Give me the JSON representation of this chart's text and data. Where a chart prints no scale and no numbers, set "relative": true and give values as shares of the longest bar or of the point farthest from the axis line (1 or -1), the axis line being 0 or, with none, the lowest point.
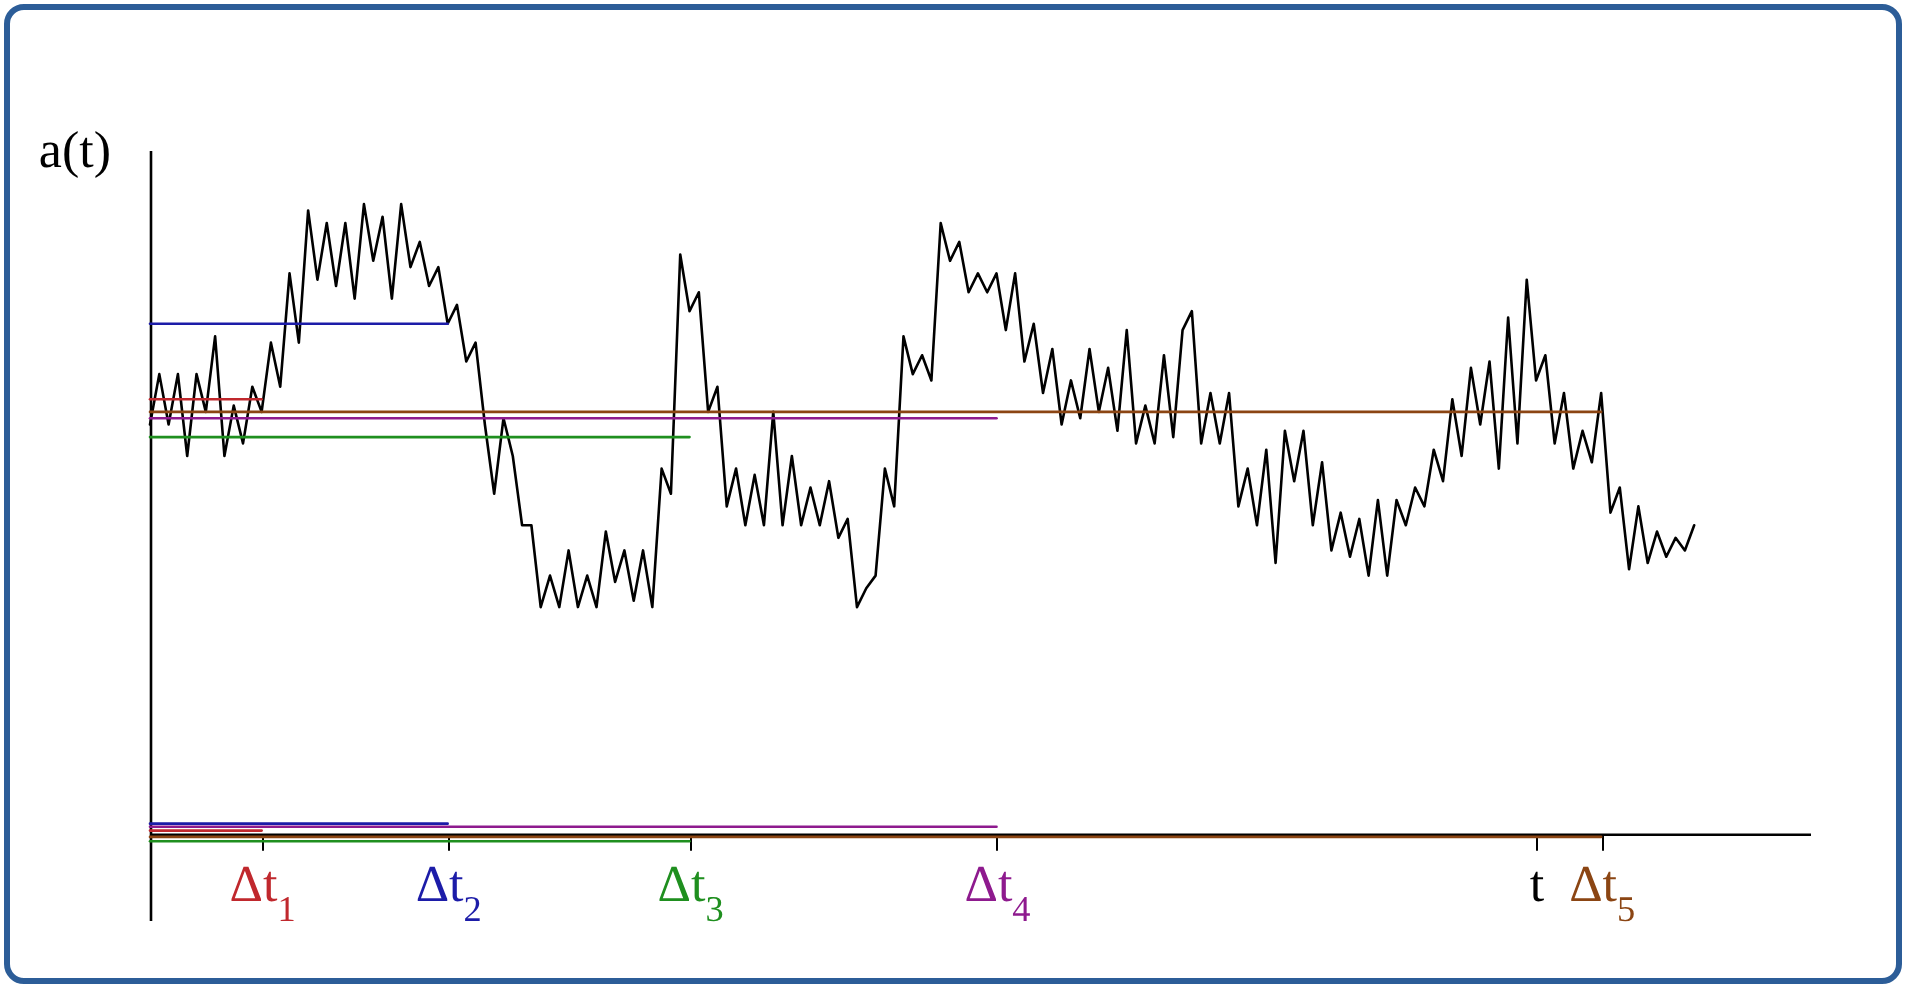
{
  "chart_data": {
    "type": "line",
    "relative": true,
    "ylabel": "a(t)",
    "marker": "none",
    "line_style": "solid",
    "categories": [
      null,
      null,
      null,
      null,
      null,
      null,
      null,
      null,
      null,
      null,
      null,
      null,
      "Δt$_{1}$",
      null,
      null,
      null,
      null,
      null,
      null,
      null,
      null,
      null,
      null,
      null,
      null,
      null,
      null,
      null,
      null,
      null,
      null,
      null,
      "Δt$_{2}$",
      null,
      null,
      null,
      null,
      null,
      null,
      null,
      null,
      null,
      null,
      null,
      null,
      null,
      null,
      null,
      null,
      null,
      null,
      null,
      null,
      null,
      null,
      null,
      null,
      null,
      "Δt$_{3}$",
      null,
      null,
      null,
      null,
      null,
      null,
      null,
      null,
      null,
      null,
      null,
      null,
      null,
      null,
      null,
      null,
      null,
      null,
      null,
      null,
      null,
      null,
      null,
      null,
      null,
      null,
      null,
      null,
      null,
      null,
      null,
      null,
      "Δt$_{4}$",
      null,
      null,
      null,
      null,
      null,
      null,
      null,
      null,
      null,
      null,
      null,
      null,
      null,
      null,
      null,
      null,
      null,
      null,
      null,
      null,
      null,
      null,
      null,
      null,
      null,
      null,
      null,
      null,
      null,
      null,
      null,
      null,
      null,
      null,
      null,
      null,
      null,
      null,
      null,
      null,
      null,
      null,
      null,
      null,
      null,
      null,
      null,
      null,
      null,
      null,
      null,
      null,
      null,
      null,
      null,
      null,
      null,
      "t",
      null,
      null,
      null,
      null,
      null,
      null,
      "Δt$_{5}$",
      null,
      null,
      null,
      null,
      null,
      null,
      null,
      null,
      null,
      null
    ],
    "series": [
      {
        "color": "#000000",
        "values": [
          0.65,
          0.73,
          0.65,
          0.73,
          0.6,
          0.73,
          0.67,
          0.79,
          0.6,
          0.68,
          0.62,
          0.71,
          0.67,
          0.78,
          0.71,
          0.89,
          0.78,
          0.99,
          0.88,
          0.97,
          0.87,
          0.97,
          0.85,
          1.0,
          0.91,
          0.98,
          0.85,
          1.0,
          0.9,
          0.94,
          0.87,
          0.9,
          0.81,
          0.84,
          0.75,
          0.78,
          0.65,
          0.54,
          0.66,
          0.6,
          0.49,
          0.49,
          0.36,
          0.41,
          0.36,
          0.45,
          0.36,
          0.41,
          0.36,
          0.48,
          0.4,
          0.45,
          0.37,
          0.45,
          0.36,
          0.58,
          0.54,
          0.92,
          0.83,
          0.86,
          0.67,
          0.71,
          0.52,
          0.58,
          0.49,
          0.57,
          0.49,
          0.67,
          0.49,
          0.6,
          0.49,
          0.55,
          0.49,
          0.56,
          0.47,
          0.5,
          0.36,
          0.39,
          0.41,
          0.58,
          0.52,
          0.79,
          0.73,
          0.76,
          0.72,
          0.97,
          0.91,
          0.94,
          0.86,
          0.89,
          0.86,
          0.89,
          0.8,
          0.89,
          0.75,
          0.81,
          0.7,
          0.77,
          0.65,
          0.72,
          0.66,
          0.77,
          0.67,
          0.74,
          0.64,
          0.8,
          0.62,
          0.68,
          0.62,
          0.76,
          0.63,
          0.8,
          0.83,
          0.62,
          0.7,
          0.62,
          0.7,
          0.52,
          0.58,
          0.49,
          0.61,
          0.43,
          0.64,
          0.56,
          0.64,
          0.49,
          0.59,
          0.45,
          0.51,
          0.44,
          0.5,
          0.41,
          0.53,
          0.41,
          0.53,
          0.49,
          0.55,
          0.52,
          0.61,
          0.56,
          0.69,
          0.6,
          0.74,
          0.65,
          0.75,
          0.58,
          0.82,
          0.62,
          0.88,
          0.72,
          0.76,
          0.62,
          0.7,
          0.58,
          0.64,
          0.59,
          0.7,
          0.51,
          0.55,
          0.42,
          0.52,
          0.43,
          0.48,
          0.44,
          0.47,
          0.45,
          0.49
        ]
      },
      {
        "color": "#c0282d",
        "values": [
          0.69,
          0.69,
          0.69,
          0.69,
          0.69,
          0.69,
          0.69,
          0.69,
          0.69,
          0.69,
          0.69,
          0.69,
          0.69,
          null,
          null,
          null,
          null,
          null,
          null,
          null,
          null,
          null,
          null,
          null,
          null,
          null,
          null,
          null,
          null,
          null,
          null,
          null,
          null,
          null,
          null,
          null,
          null,
          null,
          null,
          null,
          null,
          null,
          null,
          null,
          null,
          null,
          null,
          null,
          null,
          null,
          null,
          null,
          null,
          null,
          null,
          null,
          null,
          null,
          null,
          null,
          null,
          null,
          null,
          null,
          null,
          null,
          null,
          null,
          null,
          null,
          null,
          null,
          null,
          null,
          null,
          null,
          null,
          null,
          null,
          null,
          null,
          null,
          null,
          null,
          null,
          null,
          null,
          null,
          null,
          null,
          null,
          null,
          null,
          null,
          null,
          null,
          null,
          null,
          null,
          null,
          null,
          null,
          null,
          null,
          null,
          null,
          null,
          null,
          null,
          null,
          null,
          null,
          null,
          null,
          null,
          null,
          null,
          null,
          null,
          null,
          null,
          null,
          null,
          null,
          null,
          null,
          null,
          null,
          null,
          null,
          null,
          null,
          null,
          null,
          null,
          null,
          null,
          null,
          null,
          null,
          null,
          null,
          null,
          null,
          null,
          null,
          null,
          null,
          null,
          null,
          null,
          null,
          null,
          null,
          null,
          null,
          null,
          null,
          null,
          null,
          null,
          null,
          null,
          null,
          null,
          null,
          null
        ]
      },
      {
        "color": "#1c1ca8",
        "values": [
          0.81,
          0.81,
          0.81,
          0.81,
          0.81,
          0.81,
          0.81,
          0.81,
          0.81,
          0.81,
          0.81,
          0.81,
          0.81,
          0.81,
          0.81,
          0.81,
          0.81,
          0.81,
          0.81,
          0.81,
          0.81,
          0.81,
          0.81,
          0.81,
          0.81,
          0.81,
          0.81,
          0.81,
          0.81,
          0.81,
          0.81,
          0.81,
          0.81,
          null,
          null,
          null,
          null,
          null,
          null,
          null,
          null,
          null,
          null,
          null,
          null,
          null,
          null,
          null,
          null,
          null,
          null,
          null,
          null,
          null,
          null,
          null,
          null,
          null,
          null,
          null,
          null,
          null,
          null,
          null,
          null,
          null,
          null,
          null,
          null,
          null,
          null,
          null,
          null,
          null,
          null,
          null,
          null,
          null,
          null,
          null,
          null,
          null,
          null,
          null,
          null,
          null,
          null,
          null,
          null,
          null,
          null,
          null,
          null,
          null,
          null,
          null,
          null,
          null,
          null,
          null,
          null,
          null,
          null,
          null,
          null,
          null,
          null,
          null,
          null,
          null,
          null,
          null,
          null,
          null,
          null,
          null,
          null,
          null,
          null,
          null,
          null,
          null,
          null,
          null,
          null,
          null,
          null,
          null,
          null,
          null,
          null,
          null,
          null,
          null,
          null,
          null,
          null,
          null,
          null,
          null,
          null,
          null,
          null,
          null,
          null,
          null,
          null,
          null,
          null,
          null,
          null,
          null,
          null,
          null,
          null,
          null,
          null,
          null,
          null,
          null,
          null,
          null,
          null,
          null,
          null,
          null,
          null
        ]
      },
      {
        "color": "#1f8f1f",
        "values": [
          0.63,
          0.63,
          0.63,
          0.63,
          0.63,
          0.63,
          0.63,
          0.63,
          0.63,
          0.63,
          0.63,
          0.63,
          0.63,
          0.63,
          0.63,
          0.63,
          0.63,
          0.63,
          0.63,
          0.63,
          0.63,
          0.63,
          0.63,
          0.63,
          0.63,
          0.63,
          0.63,
          0.63,
          0.63,
          0.63,
          0.63,
          0.63,
          0.63,
          0.63,
          0.63,
          0.63,
          0.63,
          0.63,
          0.63,
          0.63,
          0.63,
          0.63,
          0.63,
          0.63,
          0.63,
          0.63,
          0.63,
          0.63,
          0.63,
          0.63,
          0.63,
          0.63,
          0.63,
          0.63,
          0.63,
          0.63,
          0.63,
          0.63,
          0.63,
          null,
          null,
          null,
          null,
          null,
          null,
          null,
          null,
          null,
          null,
          null,
          null,
          null,
          null,
          null,
          null,
          null,
          null,
          null,
          null,
          null,
          null,
          null,
          null,
          null,
          null,
          null,
          null,
          null,
          null,
          null,
          null,
          null,
          null,
          null,
          null,
          null,
          null,
          null,
          null,
          null,
          null,
          null,
          null,
          null,
          null,
          null,
          null,
          null,
          null,
          null,
          null,
          null,
          null,
          null,
          null,
          null,
          null,
          null,
          null,
          null,
          null,
          null,
          null,
          null,
          null,
          null,
          null,
          null,
          null,
          null,
          null,
          null,
          null,
          null,
          null,
          null,
          null,
          null,
          null,
          null,
          null,
          null,
          null,
          null,
          null,
          null,
          null,
          null,
          null,
          null,
          null,
          null,
          null,
          null,
          null,
          null,
          null,
          null,
          null,
          null,
          null,
          null,
          null,
          null,
          null,
          null,
          null
        ]
      },
      {
        "color": "#8e1a8e",
        "values": [
          0.66,
          0.66,
          0.66,
          0.66,
          0.66,
          0.66,
          0.66,
          0.66,
          0.66,
          0.66,
          0.66,
          0.66,
          0.66,
          0.66,
          0.66,
          0.66,
          0.66,
          0.66,
          0.66,
          0.66,
          0.66,
          0.66,
          0.66,
          0.66,
          0.66,
          0.66,
          0.66,
          0.66,
          0.66,
          0.66,
          0.66,
          0.66,
          0.66,
          0.66,
          0.66,
          0.66,
          0.66,
          0.66,
          0.66,
          0.66,
          0.66,
          0.66,
          0.66,
          0.66,
          0.66,
          0.66,
          0.66,
          0.66,
          0.66,
          0.66,
          0.66,
          0.66,
          0.66,
          0.66,
          0.66,
          0.66,
          0.66,
          0.66,
          0.66,
          0.66,
          0.66,
          0.66,
          0.66,
          0.66,
          0.66,
          0.66,
          0.66,
          0.66,
          0.66,
          0.66,
          0.66,
          0.66,
          0.66,
          0.66,
          0.66,
          0.66,
          0.66,
          0.66,
          0.66,
          0.66,
          0.66,
          0.66,
          0.66,
          0.66,
          0.66,
          0.66,
          0.66,
          0.66,
          0.66,
          0.66,
          0.66,
          0.66,
          null,
          null,
          null,
          null,
          null,
          null,
          null,
          null,
          null,
          null,
          null,
          null,
          null,
          null,
          null,
          null,
          null,
          null,
          null,
          null,
          null,
          null,
          null,
          null,
          null,
          null,
          null,
          null,
          null,
          null,
          null,
          null,
          null,
          null,
          null,
          null,
          null,
          null,
          null,
          null,
          null,
          null,
          null,
          null,
          null,
          null,
          null,
          null,
          null,
          null,
          null,
          null,
          null,
          null,
          null,
          null,
          null,
          null,
          null,
          null,
          null,
          null,
          null,
          null,
          null,
          null,
          null,
          null,
          null,
          null,
          null,
          null,
          null,
          null,
          null
        ]
      },
      {
        "color": "#8b4513",
        "values": [
          0.67,
          0.67,
          0.67,
          0.67,
          0.67,
          0.67,
          0.67,
          0.67,
          0.67,
          0.67,
          0.67,
          0.67,
          0.67,
          0.67,
          0.67,
          0.67,
          0.67,
          0.67,
          0.67,
          0.67,
          0.67,
          0.67,
          0.67,
          0.67,
          0.67,
          0.67,
          0.67,
          0.67,
          0.67,
          0.67,
          0.67,
          0.67,
          0.67,
          0.67,
          0.67,
          0.67,
          0.67,
          0.67,
          0.67,
          0.67,
          0.67,
          0.67,
          0.67,
          0.67,
          0.67,
          0.67,
          0.67,
          0.67,
          0.67,
          0.67,
          0.67,
          0.67,
          0.67,
          0.67,
          0.67,
          0.67,
          0.67,
          0.67,
          0.67,
          0.67,
          0.67,
          0.67,
          0.67,
          0.67,
          0.67,
          0.67,
          0.67,
          0.67,
          0.67,
          0.67,
          0.67,
          0.67,
          0.67,
          0.67,
          0.67,
          0.67,
          0.67,
          0.67,
          0.67,
          0.67,
          0.67,
          0.67,
          0.67,
          0.67,
          0.67,
          0.67,
          0.67,
          0.67,
          0.67,
          0.67,
          0.67,
          0.67,
          0.67,
          0.67,
          0.67,
          0.67,
          0.67,
          0.67,
          0.67,
          0.67,
          0.67,
          0.67,
          0.67,
          0.67,
          0.67,
          0.67,
          0.67,
          0.67,
          0.67,
          0.67,
          0.67,
          0.67,
          0.67,
          0.67,
          0.67,
          0.67,
          0.67,
          0.67,
          0.67,
          0.67,
          0.67,
          0.67,
          0.67,
          0.67,
          0.67,
          0.67,
          0.67,
          0.67,
          0.67,
          0.67,
          0.67,
          0.67,
          0.67,
          0.67,
          0.67,
          0.67,
          0.67,
          0.67,
          0.67,
          0.67,
          0.67,
          0.67,
          0.67,
          0.67,
          0.67,
          0.67,
          0.67,
          0.67,
          0.67,
          0.67,
          0.67,
          0.67,
          0.67,
          0.67,
          0.67,
          0.67,
          0.67,
          null,
          null,
          null,
          null,
          null,
          null,
          null,
          null,
          null,
          null
        ]
      },
      {
        "color": "#1c1ca8",
        "values": [
          0.016,
          0.016,
          0.016,
          0.016,
          0.016,
          0.016,
          0.016,
          0.016,
          0.016,
          0.016,
          0.016,
          0.016,
          0.016,
          0.016,
          0.016,
          0.016,
          0.016,
          0.016,
          0.016,
          0.016,
          0.016,
          0.016,
          0.016,
          0.016,
          0.016,
          0.016,
          0.016,
          0.016,
          0.016,
          0.016,
          0.016,
          0.016,
          0.016,
          null,
          null,
          null,
          null,
          null,
          null,
          null,
          null,
          null,
          null,
          null,
          null,
          null,
          null,
          null,
          null,
          null,
          null,
          null,
          null,
          null,
          null,
          null,
          null,
          null,
          null,
          null,
          null,
          null,
          null,
          null,
          null,
          null,
          null,
          null,
          null,
          null,
          null,
          null,
          null,
          null,
          null,
          null,
          null,
          null,
          null,
          null,
          null,
          null,
          null,
          null,
          null,
          null,
          null,
          null,
          null,
          null,
          null,
          null,
          null,
          null,
          null,
          null,
          null,
          null,
          null,
          null,
          null,
          null,
          null,
          null,
          null,
          null,
          null,
          null,
          null,
          null,
          null,
          null,
          null,
          null,
          null,
          null,
          null,
          null,
          null,
          null,
          null,
          null,
          null,
          null,
          null,
          null,
          null,
          null,
          null,
          null,
          null,
          null,
          null,
          null,
          null,
          null,
          null,
          null,
          null,
          null,
          null,
          null,
          null,
          null,
          null,
          null,
          null,
          null,
          null,
          null,
          null,
          null,
          null,
          null,
          null,
          null,
          null,
          null,
          null,
          null,
          null,
          null,
          null,
          null,
          null,
          null,
          null
        ]
      },
      {
        "color": "#8e1a8e",
        "values": [
          0.011,
          0.011,
          0.011,
          0.011,
          0.011,
          0.011,
          0.011,
          0.011,
          0.011,
          0.011,
          0.011,
          0.011,
          0.011,
          0.011,
          0.011,
          0.011,
          0.011,
          0.011,
          0.011,
          0.011,
          0.011,
          0.011,
          0.011,
          0.011,
          0.011,
          0.011,
          0.011,
          0.011,
          0.011,
          0.011,
          0.011,
          0.011,
          0.011,
          0.011,
          0.011,
          0.011,
          0.011,
          0.011,
          0.011,
          0.011,
          0.011,
          0.011,
          0.011,
          0.011,
          0.011,
          0.011,
          0.011,
          0.011,
          0.011,
          0.011,
          0.011,
          0.011,
          0.011,
          0.011,
          0.011,
          0.011,
          0.011,
          0.011,
          0.011,
          0.011,
          0.011,
          0.011,
          0.011,
          0.011,
          0.011,
          0.011,
          0.011,
          0.011,
          0.011,
          0.011,
          0.011,
          0.011,
          0.011,
          0.011,
          0.011,
          0.011,
          0.011,
          0.011,
          0.011,
          0.011,
          0.011,
          0.011,
          0.011,
          0.011,
          0.011,
          0.011,
          0.011,
          0.011,
          0.011,
          0.011,
          0.011,
          0.011,
          null,
          null,
          null,
          null,
          null,
          null,
          null,
          null,
          null,
          null,
          null,
          null,
          null,
          null,
          null,
          null,
          null,
          null,
          null,
          null,
          null,
          null,
          null,
          null,
          null,
          null,
          null,
          null,
          null,
          null,
          null,
          null,
          null,
          null,
          null,
          null,
          null,
          null,
          null,
          null,
          null,
          null,
          null,
          null,
          null,
          null,
          null,
          null,
          null,
          null,
          null,
          null,
          null,
          null,
          null,
          null,
          null,
          null,
          null,
          null,
          null,
          null,
          null,
          null,
          null,
          null,
          null,
          null,
          null,
          null,
          null,
          null,
          null,
          null,
          null
        ]
      },
      {
        "color": "#c0282d",
        "values": [
          0.005,
          0.005,
          0.005,
          0.005,
          0.005,
          0.005,
          0.005,
          0.005,
          0.005,
          0.005,
          0.005,
          0.005,
          0.005,
          null,
          null,
          null,
          null,
          null,
          null,
          null,
          null,
          null,
          null,
          null,
          null,
          null,
          null,
          null,
          null,
          null,
          null,
          null,
          null,
          null,
          null,
          null,
          null,
          null,
          null,
          null,
          null,
          null,
          null,
          null,
          null,
          null,
          null,
          null,
          null,
          null,
          null,
          null,
          null,
          null,
          null,
          null,
          null,
          null,
          null,
          null,
          null,
          null,
          null,
          null,
          null,
          null,
          null,
          null,
          null,
          null,
          null,
          null,
          null,
          null,
          null,
          null,
          null,
          null,
          null,
          null,
          null,
          null,
          null,
          null,
          null,
          null,
          null,
          null,
          null,
          null,
          null,
          null,
          null,
          null,
          null,
          null,
          null,
          null,
          null,
          null,
          null,
          null,
          null,
          null,
          null,
          null,
          null,
          null,
          null,
          null,
          null,
          null,
          null,
          null,
          null,
          null,
          null,
          null,
          null,
          null,
          null,
          null,
          null,
          null,
          null,
          null,
          null,
          null,
          null,
          null,
          null,
          null,
          null,
          null,
          null,
          null,
          null,
          null,
          null,
          null,
          null,
          null,
          null,
          null,
          null,
          null,
          null,
          null,
          null,
          null,
          null,
          null,
          null,
          null,
          null,
          null,
          null,
          null,
          null,
          null,
          null,
          null,
          null,
          null,
          null,
          null,
          null
        ]
      },
      {
        "color": "#8b4513",
        "values": [
          -0.005,
          -0.005,
          -0.005,
          -0.005,
          -0.005,
          -0.005,
          -0.005,
          -0.005,
          -0.005,
          -0.005,
          -0.005,
          -0.005,
          -0.005,
          -0.005,
          -0.005,
          -0.005,
          -0.005,
          -0.005,
          -0.005,
          -0.005,
          -0.005,
          -0.005,
          -0.005,
          -0.005,
          -0.005,
          -0.005,
          -0.005,
          -0.005,
          -0.005,
          -0.005,
          -0.005,
          -0.005,
          -0.005,
          -0.005,
          -0.005,
          -0.005,
          -0.005,
          -0.005,
          -0.005,
          -0.005,
          -0.005,
          -0.005,
          -0.005,
          -0.005,
          -0.005,
          -0.005,
          -0.005,
          -0.005,
          -0.005,
          -0.005,
          -0.005,
          -0.005,
          -0.005,
          -0.005,
          -0.005,
          -0.005,
          -0.005,
          -0.005,
          -0.005,
          -0.005,
          -0.005,
          -0.005,
          -0.005,
          -0.005,
          -0.005,
          -0.005,
          -0.005,
          -0.005,
          -0.005,
          -0.005,
          -0.005,
          -0.005,
          -0.005,
          -0.005,
          -0.005,
          -0.005,
          -0.005,
          -0.005,
          -0.005,
          -0.005,
          -0.005,
          -0.005,
          -0.005,
          -0.005,
          -0.005,
          -0.005,
          -0.005,
          -0.005,
          -0.005,
          -0.005,
          -0.005,
          -0.005,
          -0.005,
          -0.005,
          -0.005,
          -0.005,
          -0.005,
          -0.005,
          -0.005,
          -0.005,
          -0.005,
          -0.005,
          -0.005,
          -0.005,
          -0.005,
          -0.005,
          -0.005,
          -0.005,
          -0.005,
          -0.005,
          -0.005,
          -0.005,
          -0.005,
          -0.005,
          -0.005,
          -0.005,
          -0.005,
          -0.005,
          -0.005,
          -0.005,
          -0.005,
          -0.005,
          -0.005,
          -0.005,
          -0.005,
          -0.005,
          -0.005,
          -0.005,
          -0.005,
          -0.005,
          -0.005,
          -0.005,
          -0.005,
          -0.005,
          -0.005,
          -0.005,
          -0.005,
          -0.005,
          -0.005,
          -0.005,
          -0.005,
          -0.005,
          -0.005,
          -0.005,
          -0.005,
          -0.005,
          -0.005,
          -0.005,
          -0.005,
          -0.005,
          -0.005,
          -0.005,
          -0.005,
          -0.005,
          -0.005,
          -0.005,
          -0.005,
          null,
          null,
          null,
          null,
          null,
          null,
          null,
          null,
          null,
          null
        ]
      },
      {
        "color": "#1f8f1f",
        "values": [
          -0.012,
          -0.012,
          -0.012,
          -0.012,
          -0.012,
          -0.012,
          -0.012,
          -0.012,
          -0.012,
          -0.012,
          -0.012,
          -0.012,
          -0.012,
          -0.012,
          -0.012,
          -0.012,
          -0.012,
          -0.012,
          -0.012,
          -0.012,
          -0.012,
          -0.012,
          -0.012,
          -0.012,
          -0.012,
          -0.012,
          -0.012,
          -0.012,
          -0.012,
          -0.012,
          -0.012,
          -0.012,
          -0.012,
          -0.012,
          -0.012,
          -0.012,
          -0.012,
          -0.012,
          -0.012,
          -0.012,
          -0.012,
          -0.012,
          -0.012,
          -0.012,
          -0.012,
          -0.012,
          -0.012,
          -0.012,
          -0.012,
          -0.012,
          -0.012,
          -0.012,
          -0.012,
          -0.012,
          -0.012,
          -0.012,
          -0.012,
          -0.012,
          -0.012,
          null,
          null,
          null,
          null,
          null,
          null,
          null,
          null,
          null,
          null,
          null,
          null,
          null,
          null,
          null,
          null,
          null,
          null,
          null,
          null,
          null,
          null,
          null,
          null,
          null,
          null,
          null,
          null,
          null,
          null,
          null,
          null,
          null,
          null,
          null,
          null,
          null,
          null,
          null,
          null,
          null,
          null,
          null,
          null,
          null,
          null,
          null,
          null,
          null,
          null,
          null,
          null,
          null,
          null,
          null,
          null,
          null,
          null,
          null,
          null,
          null,
          null,
          null,
          null,
          null,
          null,
          null,
          null,
          null,
          null,
          null,
          null,
          null,
          null,
          null,
          null,
          null,
          null,
          null,
          null,
          null,
          null,
          null,
          null,
          null,
          null,
          null,
          null,
          null,
          null,
          null,
          null,
          null,
          null,
          null,
          null,
          null,
          null,
          null,
          null,
          null,
          null,
          null,
          null,
          null,
          null,
          null,
          null
        ]
      }
    ]
  }
}
